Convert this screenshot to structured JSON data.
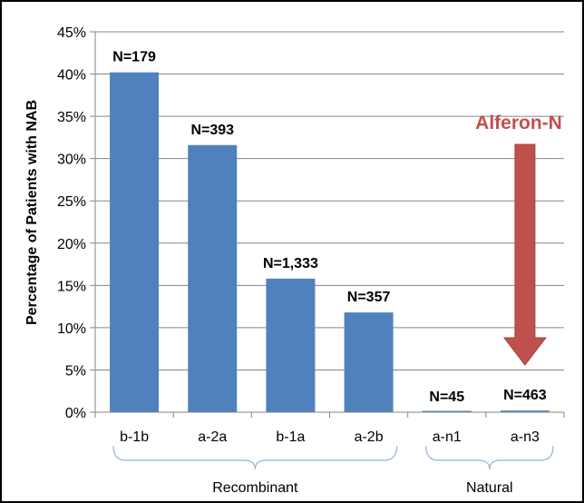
{
  "chart_data": {
    "type": "bar",
    "categories": [
      "b-1b",
      "a-2a",
      "b-1a",
      "a-2b",
      "a-n1",
      "a-n3"
    ],
    "values": [
      40.2,
      31.6,
      15.8,
      11.8,
      0.0,
      0.2
    ],
    "data_labels": [
      "N=179",
      "N=393",
      "N=1,333",
      "N=357",
      "N=45",
      "N=463"
    ],
    "ylabel": "Percentage of Patients with NAB",
    "ylim": [
      0,
      45
    ],
    "yticks": [
      0,
      5,
      10,
      15,
      20,
      25,
      30,
      35,
      40,
      45
    ],
    "ytick_labels": [
      "0%",
      "5%",
      "10%",
      "15%",
      "20%",
      "25%",
      "30%",
      "35%",
      "40%",
      "45%"
    ],
    "grid": true,
    "bar_color": "#4F81BD",
    "groups": [
      {
        "label": "Recombinant",
        "from": 0,
        "to": 3
      },
      {
        "label": "Natural",
        "from": 4,
        "to": 5
      }
    ],
    "annotation": {
      "text": "Alferon-N",
      "target_category": "a-n3",
      "color": "#C0504D"
    }
  }
}
